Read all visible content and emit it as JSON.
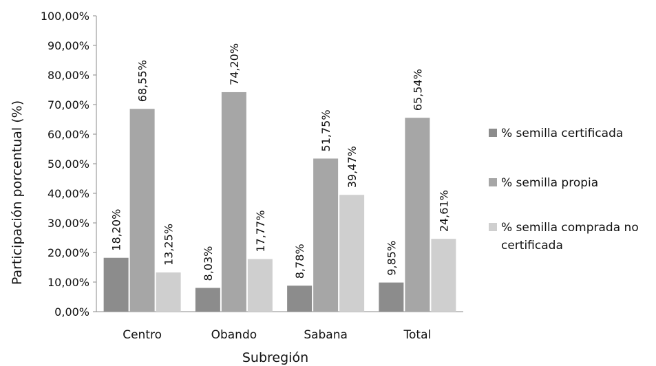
{
  "chart_data": {
    "type": "bar",
    "categories": [
      "Centro",
      "Obando",
      "Sabana",
      "Total"
    ],
    "series": [
      {
        "name": "% semilla certificada",
        "values": [
          18.2,
          8.03,
          8.78,
          9.85
        ],
        "labels": [
          "18,20%",
          "8,03%",
          "8,78%",
          "9,85%"
        ],
        "color": "#8c8c8c"
      },
      {
        "name": "% semilla propia",
        "values": [
          68.55,
          74.2,
          51.75,
          65.54
        ],
        "labels": [
          "68,55%",
          "74,20%",
          "51,75%",
          "65,54%"
        ],
        "color": "#a6a6a6"
      },
      {
        "name": "% semilla comprada no certificada",
        "legend_lines": [
          "% semilla comprada no",
          "certificada"
        ],
        "values": [
          13.25,
          17.77,
          39.47,
          24.61
        ],
        "labels": [
          "13,25%",
          "17,77%",
          "39,47%",
          "24,61%"
        ],
        "color": "#cfcfcf"
      }
    ],
    "yticks": [
      "0,00%",
      "10,00%",
      "20,00%",
      "30,00%",
      "40,00%",
      "50,00%",
      "60,00%",
      "70,00%",
      "80,00%",
      "90,00%",
      "100,00%"
    ],
    "ylim": [
      0,
      100
    ],
    "xlabel": "Subregión",
    "ylabel": "Participación porcentual (%)",
    "grid": false,
    "legend_position": "right"
  }
}
